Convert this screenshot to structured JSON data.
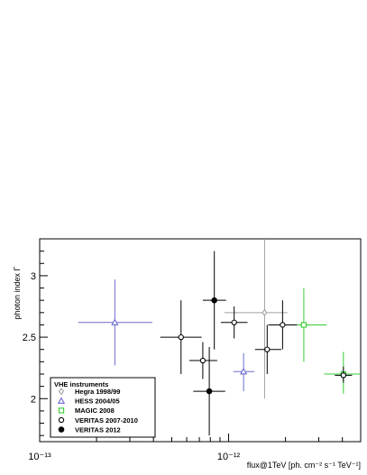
{
  "chart_data": {
    "type": "scatter",
    "title": "",
    "xlabel": "flux@1TeV [ph. cm⁻² s⁻¹ TeV⁻¹]",
    "ylabel": "photon index Γ",
    "xscale": "log",
    "xlim": [
      1e-13,
      5e-12
    ],
    "ylim": [
      1.65,
      3.3
    ],
    "grid": false,
    "legend": {
      "title": "VHE instruments",
      "placement": "bottom-left"
    },
    "x_ticks": [
      {
        "value": 1e-13,
        "label": "10⁻¹³"
      },
      {
        "value": 1e-12,
        "label": "10⁻¹²"
      }
    ],
    "y_ticks": [
      {
        "value": 2,
        "label": "2"
      },
      {
        "value": 2.5,
        "label": "2.5"
      },
      {
        "value": 3,
        "label": "3"
      }
    ],
    "series": [
      {
        "name": "Hegra 1998/99",
        "marker": "open-diamond",
        "color": "#a0a0a0",
        "points": [
          {
            "x": 1.55e-12,
            "y": 2.7,
            "xerr": [
              9.5e-13,
              2.05e-12
            ],
            "yerr": [
              2.0,
              3.3
            ]
          }
        ]
      },
      {
        "name": "HESS 2004/05",
        "marker": "open-triangle",
        "color": "#6a6ad0",
        "points": [
          {
            "x": 2.5e-13,
            "y": 2.62,
            "xerr": [
              1.6e-13,
              3.95e-13
            ],
            "yerr": [
              2.27,
              2.97
            ]
          },
          {
            "x": 1.2e-12,
            "y": 2.22,
            "xerr": [
              1.06e-12,
              1.37e-12
            ],
            "yerr": [
              2.06,
              2.37
            ]
          }
        ]
      },
      {
        "name": "MAGIC 2008",
        "marker": "open-square",
        "color": "#33cc33",
        "points": [
          {
            "x": 2.5e-12,
            "y": 2.6,
            "xerr": [
              1.8e-12,
              3.3e-12
            ],
            "yerr": [
              2.3,
              2.9
            ]
          },
          {
            "x": 4.05e-12,
            "y": 2.2,
            "xerr": [
              3.2e-12,
              4.95e-12
            ],
            "yerr": [
              2.04,
              2.38
            ]
          }
        ]
      },
      {
        "name": "VERITAS 2007-2010",
        "marker": "open-circle",
        "color": "#000000",
        "points": [
          {
            "x": 5.6e-13,
            "y": 2.5,
            "xerr": [
              4.35e-13,
              7.2e-13
            ],
            "yerr": [
              2.2,
              2.8
            ]
          },
          {
            "x": 7.3e-13,
            "y": 2.31,
            "xerr": [
              6.2e-13,
              8.7e-13
            ],
            "yerr": [
              2.16,
              2.46
            ]
          },
          {
            "x": 1.07e-12,
            "y": 2.62,
            "xerr": [
              9.1e-13,
              1.26e-12
            ],
            "yerr": [
              2.49,
              2.75
            ]
          },
          {
            "x": 1.6e-12,
            "y": 2.4,
            "xerr": [
              1.38e-12,
              1.9e-12
            ],
            "yerr": [
              2.2,
              2.6
            ]
          },
          {
            "x": 1.93e-12,
            "y": 2.6,
            "xerr": [
              1.62e-12,
              2.3e-12
            ],
            "yerr": [
              2.4,
              2.8
            ]
          },
          {
            "x": 4.05e-12,
            "y": 2.19,
            "xerr": [
              3.65e-12,
              4.5e-12
            ],
            "yerr": [
              2.13,
              2.26
            ]
          }
        ]
      },
      {
        "name": "VERITAS 2012",
        "marker": "filled-circle",
        "color": "#000000",
        "points": [
          {
            "x": 8.4e-13,
            "y": 2.8,
            "xerr": [
              7.3e-13,
              9.7e-13
            ],
            "yerr": [
              2.4,
              3.2
            ]
          },
          {
            "x": 7.9e-13,
            "y": 2.06,
            "xerr": [
              6.5e-13,
              9.6e-13
            ],
            "yerr": [
              1.7,
              2.42
            ]
          }
        ]
      }
    ]
  }
}
